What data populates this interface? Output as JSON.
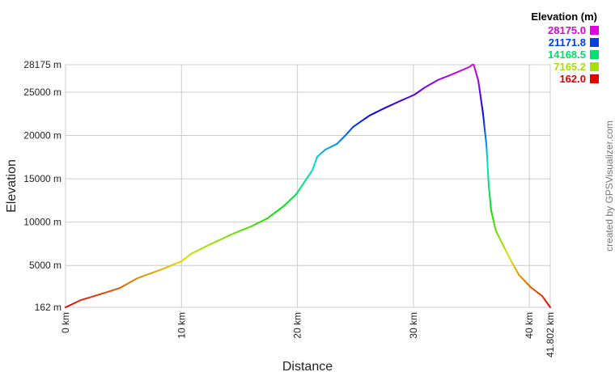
{
  "chart_data": {
    "type": "line",
    "xlabel": "Distance",
    "ylabel": "Elevation",
    "xlim": [
      0,
      41.802
    ],
    "ylim": [
      162,
      28175
    ],
    "grid": true,
    "x_ticks": [
      {
        "value": 0,
        "label": "0 km"
      },
      {
        "value": 10,
        "label": "10 km"
      },
      {
        "value": 20,
        "label": "20 km"
      },
      {
        "value": 30,
        "label": "30 km"
      },
      {
        "value": 40,
        "label": "40 km"
      },
      {
        "value": 41.802,
        "label": "41.802 km"
      }
    ],
    "y_ticks": [
      {
        "value": 162,
        "label": "162 m"
      },
      {
        "value": 5000,
        "label": "5000 m"
      },
      {
        "value": 10000,
        "label": "10000 m"
      },
      {
        "value": 15000,
        "label": "15000 m"
      },
      {
        "value": 20000,
        "label": "20000 m"
      },
      {
        "value": 25000,
        "label": "25000 m"
      },
      {
        "value": 28175,
        "label": "28175 m"
      }
    ],
    "color_by": "elevation",
    "legend": {
      "title": "Elevation (m)",
      "placement": "top-right",
      "entries": [
        {
          "label": "28175.0",
          "color": "#e000e0"
        },
        {
          "label": "21171.8",
          "color": "#0040e0"
        },
        {
          "label": "14168.5",
          "color": "#00e070"
        },
        {
          "label": "7165.2",
          "color": "#a8e000"
        },
        {
          "label": "162.0",
          "color": "#e00000"
        }
      ]
    },
    "series": [
      {
        "x": [
          0,
          1.33,
          3.4,
          4.7,
          6.2,
          8.3,
          10,
          10.8,
          12.5,
          14.6,
          16,
          17.4,
          18.8,
          19.9,
          20.6,
          21.3,
          21.7,
          22.4,
          23.4,
          24.1,
          24.8,
          26.2,
          27.6,
          29,
          30.1,
          31,
          32.1,
          33.5,
          34.8,
          35.1,
          35.2,
          35.6,
          36,
          36.3,
          36.5,
          36.7,
          37.1,
          37.8,
          38.4,
          39.1,
          40.1,
          41.1,
          41.802
        ],
        "y": [
          162,
          1000,
          1840,
          2400,
          3520,
          4550,
          5480,
          6320,
          7450,
          8750,
          9500,
          10430,
          11830,
          13230,
          14630,
          16030,
          17530,
          18370,
          19020,
          19960,
          20990,
          22290,
          23220,
          24070,
          24720,
          25560,
          26400,
          27150,
          27900,
          28175,
          28175,
          26310,
          22570,
          18840,
          14170,
          11370,
          9030,
          7165,
          5580,
          3900,
          2500,
          1470,
          162
        ]
      }
    ]
  },
  "credit": "created by GPSVisualizer.com"
}
